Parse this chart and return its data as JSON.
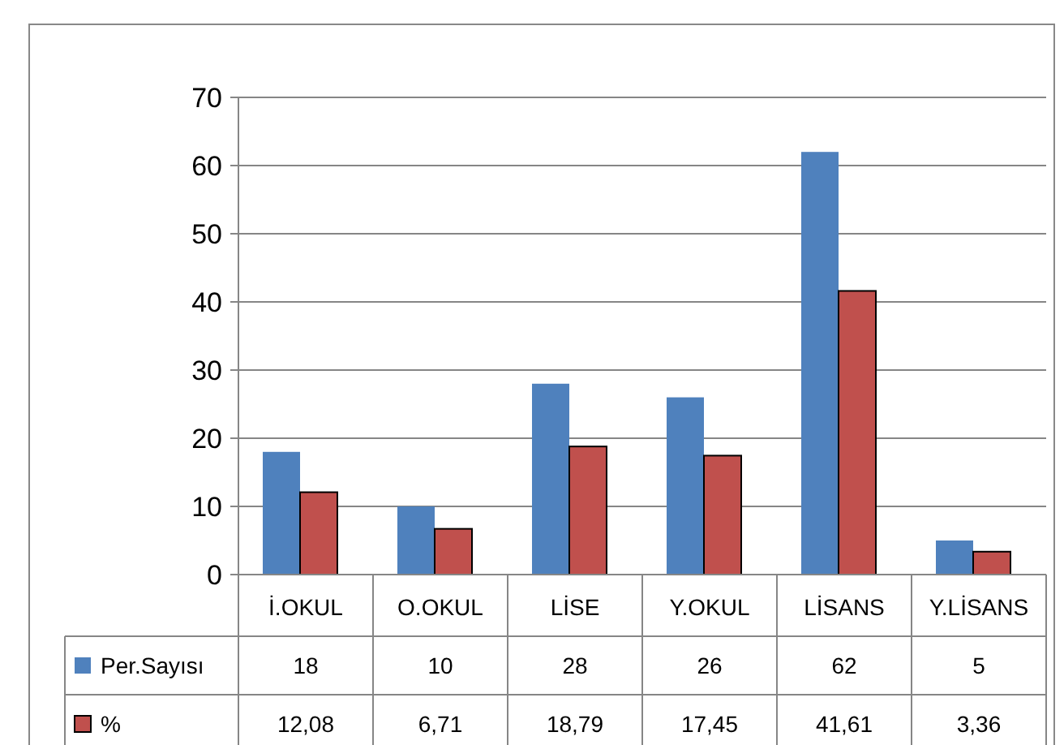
{
  "chart_data": {
    "type": "bar",
    "categories": [
      "İ.OKUL",
      "O.OKUL",
      "LİSE",
      "Y.OKUL",
      "LİSANS",
      "Y.LİSANS"
    ],
    "series": [
      {
        "name": "Per.Sayısı",
        "color": "#4f81bd",
        "values": [
          18,
          10,
          28,
          26,
          62,
          5
        ],
        "value_labels": [
          "18",
          "10",
          "28",
          "26",
          "62",
          "5"
        ]
      },
      {
        "name": "%",
        "color": "#c0504d",
        "values": [
          12.08,
          6.71,
          18.79,
          17.45,
          41.61,
          3.36
        ],
        "value_labels": [
          "12,08",
          "6,71",
          "18,79",
          "17,45",
          "41,61",
          "3,36"
        ]
      }
    ],
    "ylim": [
      0,
      70
    ],
    "yticks": [
      0,
      10,
      20,
      30,
      40,
      50,
      60,
      70
    ],
    "grid": "y",
    "legend": "bottom"
  }
}
